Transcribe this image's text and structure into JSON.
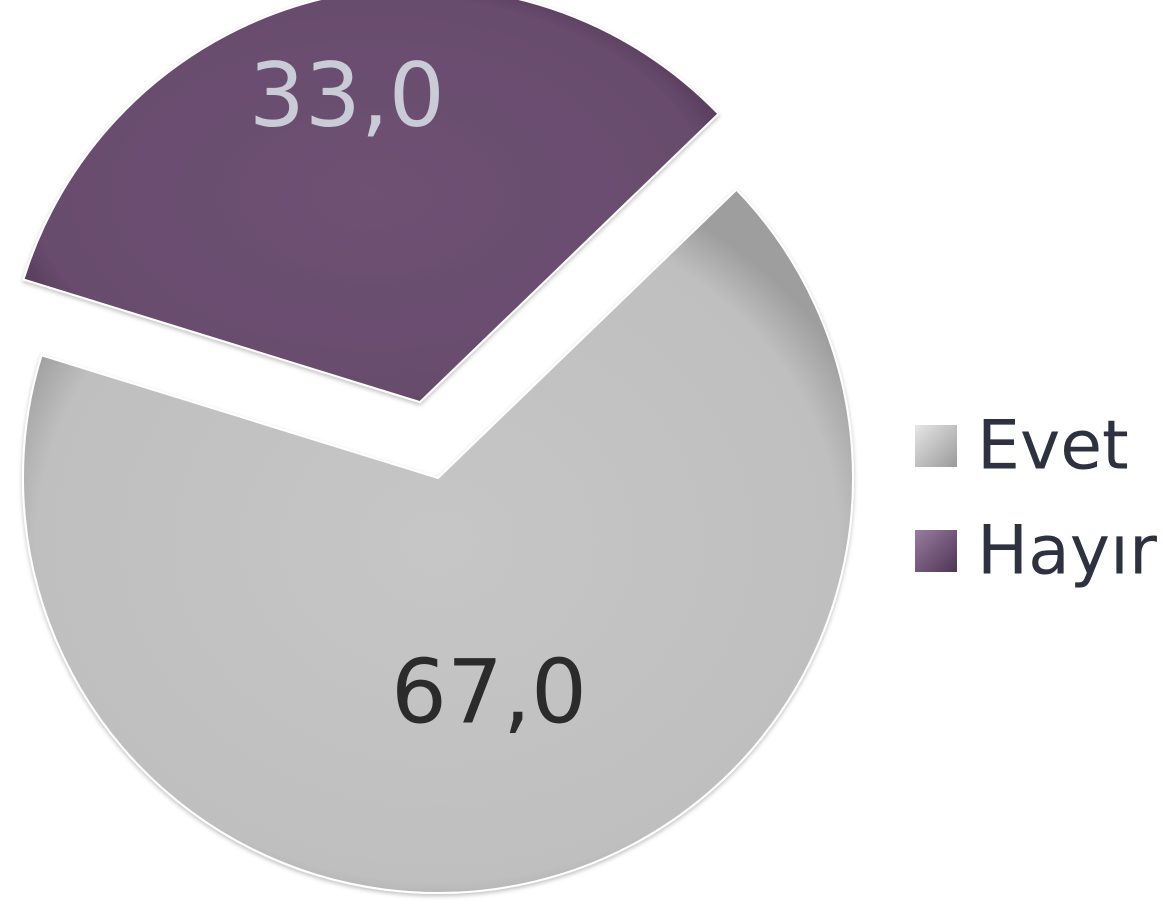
{
  "chart_data": {
    "type": "pie",
    "categories": [
      "Evet",
      "Hayır"
    ],
    "values": [
      67.0,
      33.0
    ],
    "data_labels": [
      "67,0",
      "33,0"
    ],
    "exploded": [
      "Hayır"
    ],
    "legend": {
      "position": "right",
      "entries": [
        "Evet",
        "Hayır"
      ]
    },
    "colors": {
      "Evet": "#c3c3c3",
      "Hayır": "#6b4f70",
      "Evet_label": "#2b2b2b",
      "Hayır_label": "#c9ccd6",
      "legend_text": "#2e3240"
    }
  }
}
